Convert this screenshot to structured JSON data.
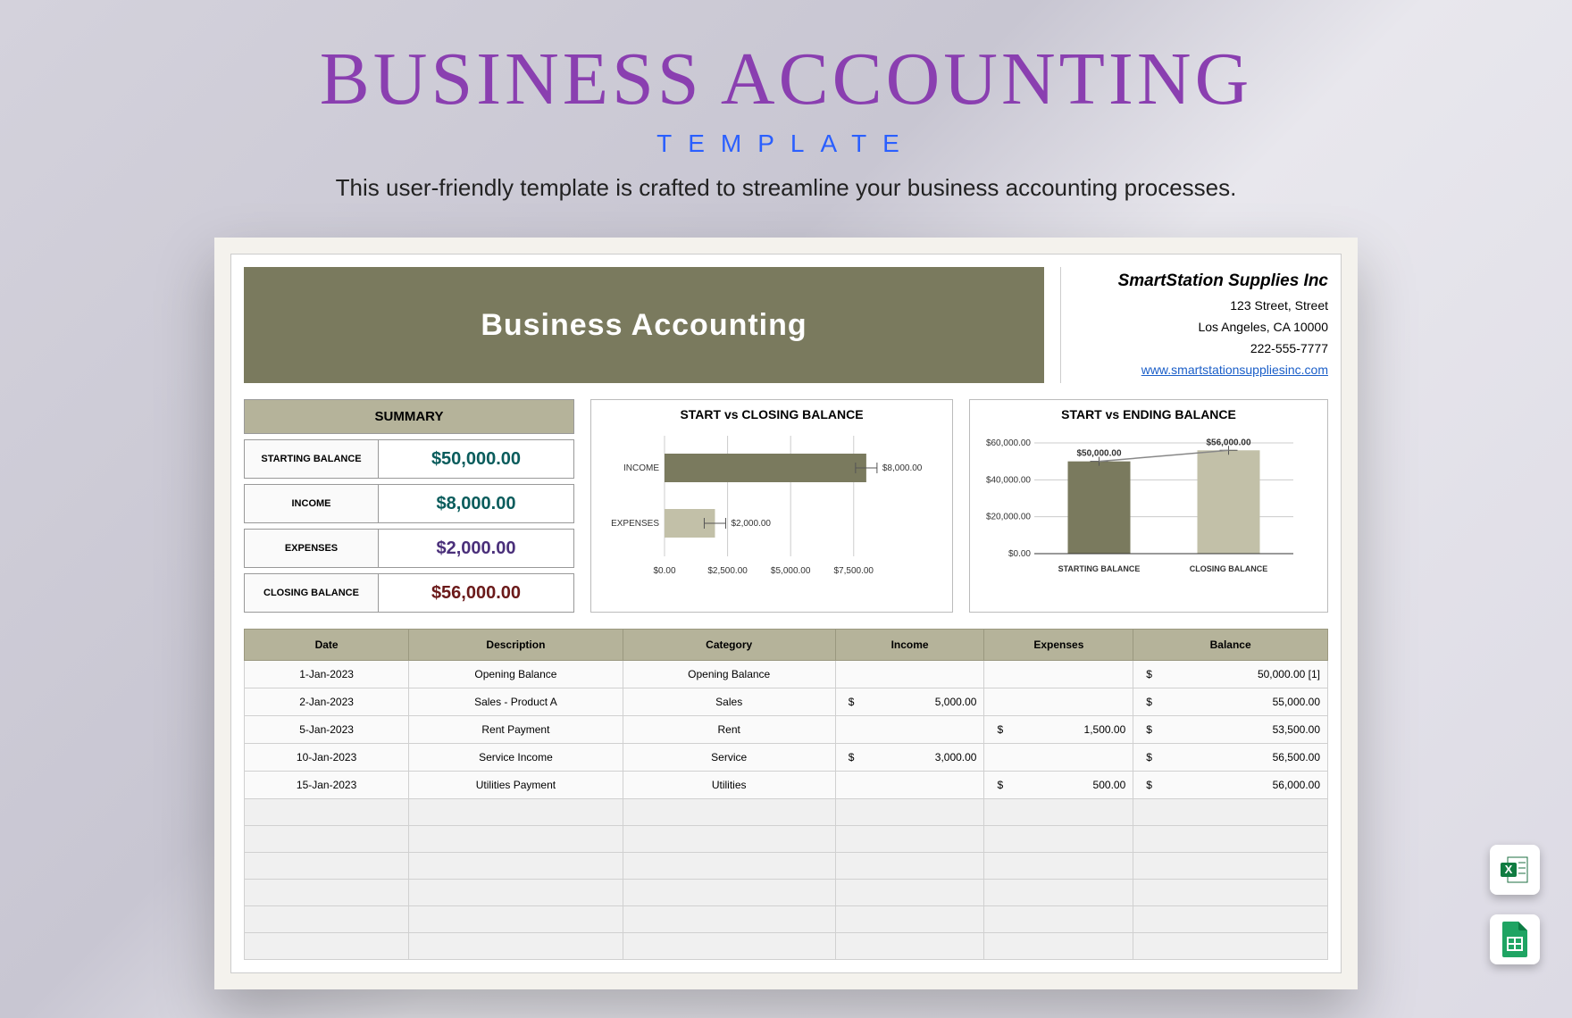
{
  "hero": {
    "title": "BUSINESS ACCOUNTING",
    "subtitle": "TEMPLATE",
    "desc": "This user-friendly template is crafted to streamline your business accounting processes.",
    "title_color": "#8a3fb0",
    "subtitle_color": "#2a5fff"
  },
  "banner": "Business Accounting",
  "company": {
    "name": "SmartStation Supplies Inc",
    "addr1": "123 Street, Street",
    "addr2": "Los Angeles, CA 10000",
    "phone": "222-555-7777",
    "url": "www.smartstationsuppliesinc.com"
  },
  "summary": {
    "header": "SUMMARY",
    "rows": [
      {
        "label": "STARTING BALANCE",
        "value": "$50,000.00",
        "color": "#0a5c5c"
      },
      {
        "label": "INCOME",
        "value": "$8,000.00",
        "color": "#0a5c5c"
      },
      {
        "label": "EXPENSES",
        "value": "$2,000.00",
        "color": "#4a2f7a"
      },
      {
        "label": "CLOSING BALANCE",
        "value": "$56,000.00",
        "color": "#6b1a1a"
      }
    ]
  },
  "chart1": {
    "title": "START vs CLOSING BALANCE",
    "type": "bar-horizontal",
    "categories": [
      "INCOME",
      "EXPENSES"
    ],
    "values": [
      8000,
      2000
    ],
    "labels": [
      "$8,000.00",
      "$2,000.00"
    ],
    "colors": [
      "#7a7a5e",
      "#c2c0a8"
    ],
    "xmax": 8500,
    "xticks": [
      "$0.00",
      "$2,500.00",
      "$5,000.00",
      "$7,500.00"
    ],
    "xtick_vals": [
      0,
      2500,
      5000,
      7500
    ],
    "axis_font": 10
  },
  "chart2": {
    "title": "START vs ENDING BALANCE",
    "type": "bar-vertical",
    "categories": [
      "STARTING BALANCE",
      "CLOSING BALANCE"
    ],
    "values": [
      50000,
      56000
    ],
    "labels": [
      "$50,000.00",
      "$56,000.00"
    ],
    "colors": [
      "#7a7a5e",
      "#c2c0a8"
    ],
    "ymax": 60000,
    "yticks": [
      "$0.00",
      "$20,000.00",
      "$40,000.00",
      "$60,000.00"
    ],
    "ytick_vals": [
      0,
      20000,
      40000,
      60000
    ],
    "axis_font": 10
  },
  "ledger": {
    "columns": [
      "Date",
      "Description",
      "Category",
      "Income",
      "Expenses",
      "Balance"
    ],
    "rows": [
      {
        "date": "1-Jan-2023",
        "desc": "Opening Balance",
        "cat": "Opening Balance",
        "inc": "",
        "exp": "",
        "bal": "50,000.00  [1]"
      },
      {
        "date": "2-Jan-2023",
        "desc": "Sales - Product A",
        "cat": "Sales",
        "inc": "5,000.00",
        "exp": "",
        "bal": "55,000.00"
      },
      {
        "date": "5-Jan-2023",
        "desc": "Rent Payment",
        "cat": "Rent",
        "inc": "",
        "exp": "1,500.00",
        "bal": "53,500.00"
      },
      {
        "date": "10-Jan-2023",
        "desc": "Service Income",
        "cat": "Service",
        "inc": "3,000.00",
        "exp": "",
        "bal": "56,500.00"
      },
      {
        "date": "15-Jan-2023",
        "desc": "Utilities Payment",
        "cat": "Utilities",
        "inc": "",
        "exp": "500.00",
        "bal": "56,000.00"
      }
    ],
    "empty_rows": 6
  },
  "icons": {
    "excel_bg": "#1d6f42",
    "sheets_bg": "#ffffff",
    "sheets_fg": "#1fa463"
  }
}
